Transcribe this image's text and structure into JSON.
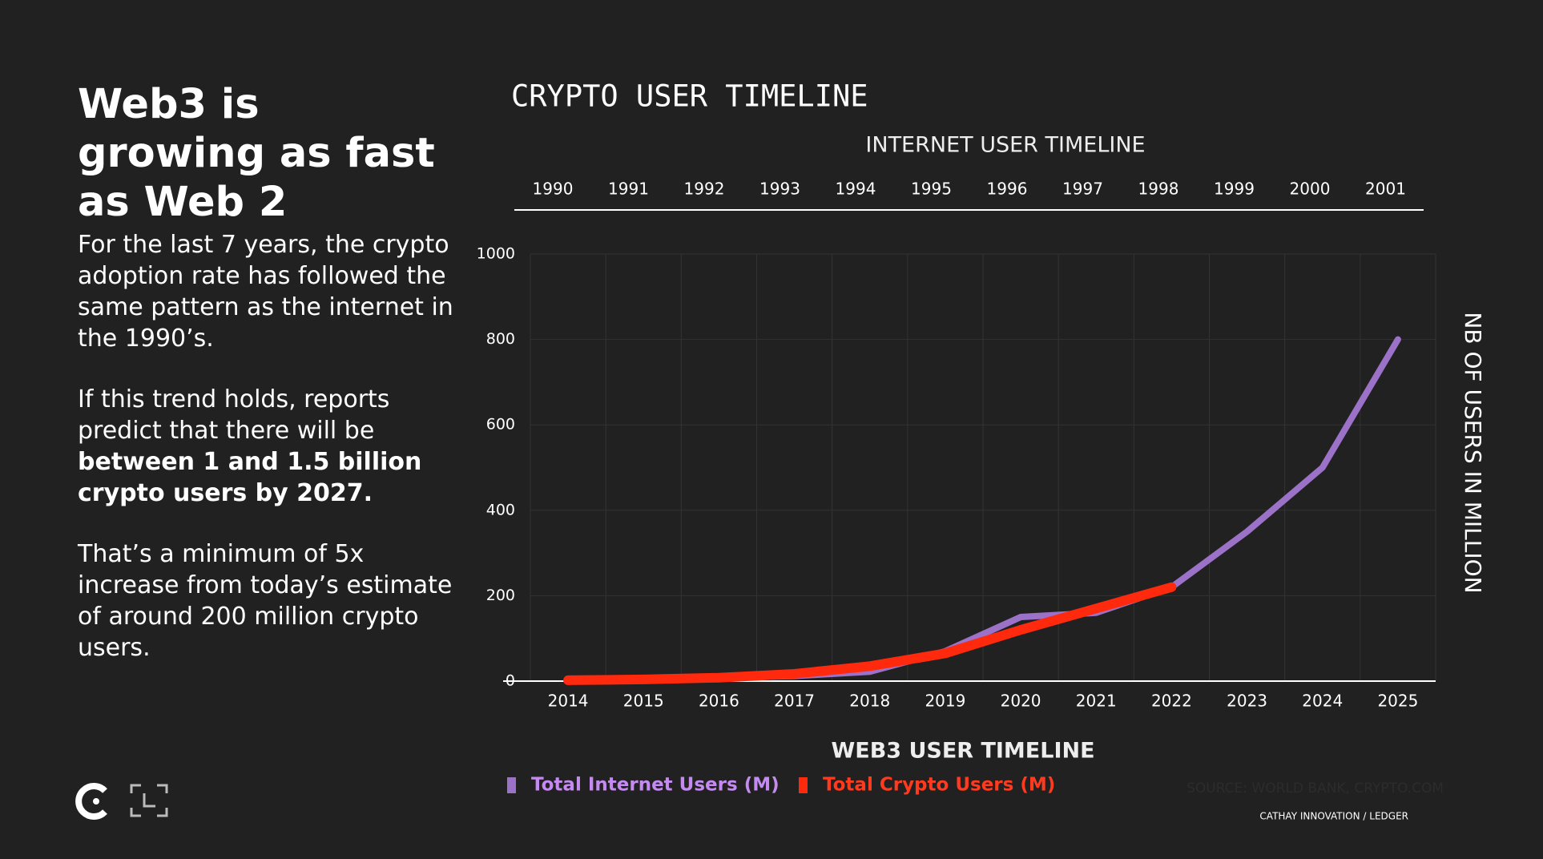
{
  "slide": {
    "heading": "Web3 is growing as fast as Web 2",
    "paragraphs": [
      [
        "For the last 7 years, the crypto adoption rate has followed the same pattern as the internet in the 1990’s."
      ],
      [
        "If this trend holds, reports predict that there will be ",
        "between 1 and 1.5 billion crypto users by 2027."
      ],
      [
        "That’s a minimum of 5x increase from today’s estimate of around 200 million crypto users."
      ]
    ],
    "source": "SOURCE: WORLD BANK, CRYPTO.COM",
    "credit": "CATHAY INNOVATION / LEDGER"
  },
  "chart_data": {
    "type": "line",
    "title": "CRYPTO USER TIMELINE",
    "top_axis_label": "INTERNET USER TIMELINE",
    "top_categories": [
      "1990",
      "1991",
      "1992",
      "1993",
      "1994",
      "1995",
      "1996",
      "1997",
      "1998",
      "1999",
      "2000",
      "2001"
    ],
    "x_label": "WEB3 USER TIMELINE",
    "y_label": "NB OF USERS IN MILLION",
    "categories": [
      "2014",
      "2015",
      "2016",
      "2017",
      "2018",
      "2019",
      "2020",
      "2021",
      "2022",
      "2023",
      "2024",
      "2025"
    ],
    "series": [
      {
        "name": "Total Internet Users (M)",
        "color": "#9b72c8",
        "legend_color": "#c58af0",
        "values": [
          2,
          4,
          7,
          12,
          22,
          70,
          150,
          160,
          220,
          350,
          500,
          800
        ]
      },
      {
        "name": "Total Crypto Users (M)",
        "color": "#ff2a0d",
        "legend_color": "#ff3b1f",
        "values": [
          2,
          4,
          8,
          17,
          35,
          65,
          120,
          170,
          220,
          null,
          null,
          null
        ]
      }
    ],
    "ylim": [
      0,
      1000
    ],
    "yticks": [
      0,
      200,
      400,
      600,
      800,
      1000
    ],
    "grid": true
  }
}
